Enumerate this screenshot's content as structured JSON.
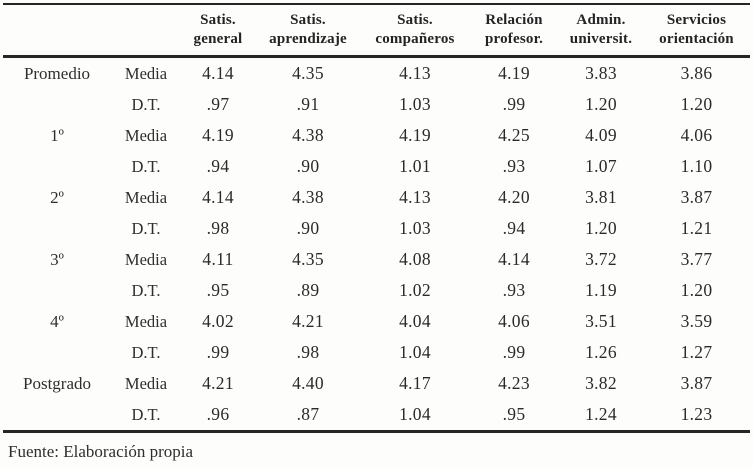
{
  "table": {
    "col_headers": [
      {
        "line1": "Satis.",
        "line2": "general"
      },
      {
        "line1": "Satis.",
        "line2": "aprendizaje"
      },
      {
        "line1": "Satis.",
        "line2": "compañeros"
      },
      {
        "line1": "Relación",
        "line2": "profesor."
      },
      {
        "line1": "Admin.",
        "line2": "universit."
      },
      {
        "line1": "Servicios",
        "line2": "orientación"
      }
    ],
    "stat_labels": {
      "media": "Media",
      "dt": "D.T."
    },
    "row_groups": [
      {
        "label": "Promedio",
        "media": [
          "4.14",
          "4.35",
          "4.13",
          "4.19",
          "3.83",
          "3.86"
        ],
        "dt": [
          ".97",
          ".91",
          "1.03",
          ".99",
          "1.20",
          "1.20"
        ]
      },
      {
        "label": "1º",
        "media": [
          "4.19",
          "4.38",
          "4.19",
          "4.25",
          "4.09",
          "4.06"
        ],
        "dt": [
          ".94",
          ".90",
          "1.01",
          ".93",
          "1.07",
          "1.10"
        ]
      },
      {
        "label": "2º",
        "media": [
          "4.14",
          "4.38",
          "4.13",
          "4.20",
          "3.81",
          "3.87"
        ],
        "dt": [
          ".98",
          ".90",
          "1.03",
          ".94",
          "1.20",
          "1.21"
        ]
      },
      {
        "label": "3º",
        "media": [
          "4.11",
          "4.35",
          "4.08",
          "4.14",
          "3.72",
          "3.77"
        ],
        "dt": [
          ".95",
          ".89",
          "1.02",
          ".93",
          "1.19",
          "1.20"
        ]
      },
      {
        "label": "4º",
        "media": [
          "4.02",
          "4.21",
          "4.04",
          "4.06",
          "3.51",
          "3.59"
        ],
        "dt": [
          ".99",
          ".98",
          "1.04",
          ".99",
          "1.26",
          "1.27"
        ]
      },
      {
        "label": "Postgrado",
        "media": [
          "4.21",
          "4.40",
          "4.17",
          "4.23",
          "3.82",
          "3.87"
        ],
        "dt": [
          ".96",
          ".87",
          "1.04",
          ".95",
          "1.24",
          "1.23"
        ]
      }
    ],
    "source_note": "Fuente: Elaboración propia"
  }
}
